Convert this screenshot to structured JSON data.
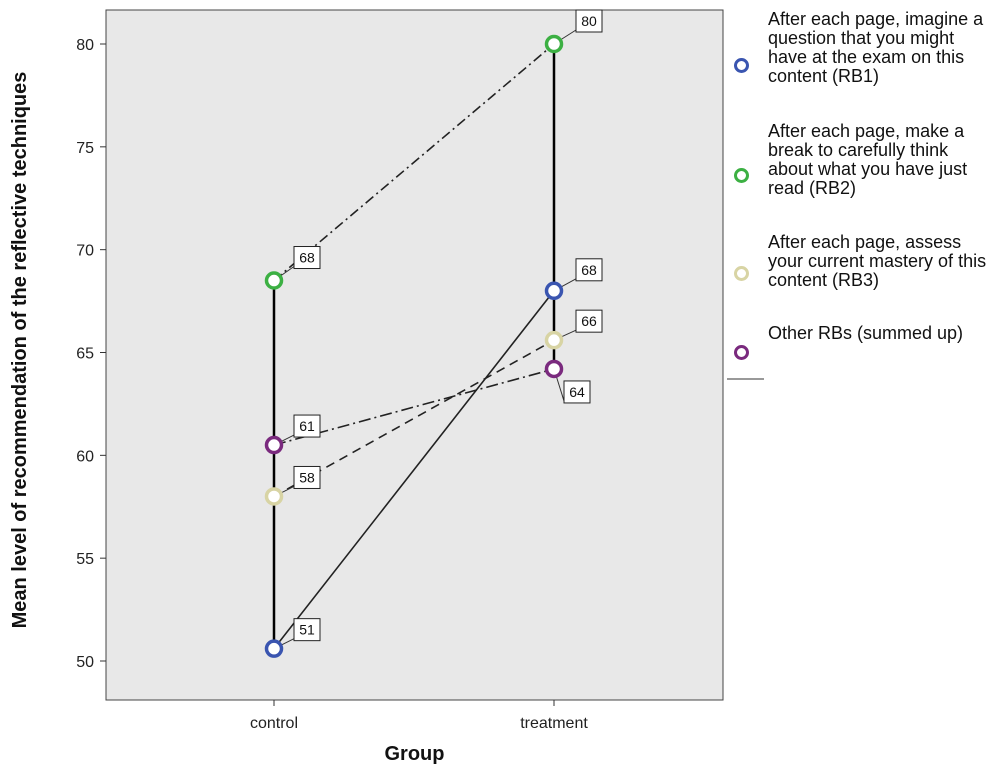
{
  "chart_data": {
    "type": "line",
    "categories": [
      "control",
      "treatment"
    ],
    "xlabel": "Group",
    "ylabel": "Mean level of recommendation of the reflective techniques",
    "ylim": [
      49,
      82
    ],
    "yticks": [
      50,
      55,
      60,
      65,
      70,
      75,
      80
    ],
    "grid": false,
    "background": "#e8e8e8",
    "legend_position": "right",
    "series": [
      {
        "name": "After each page, imagine a question that you might have at the exam on this content (RB1)",
        "values": [
          50.6,
          68.0
        ],
        "labels": [
          "51",
          "68"
        ],
        "color": "#3a55b0",
        "dash": ""
      },
      {
        "name": "After each page, make a break to carefully think about what you have just read (RB2)",
        "values": [
          68.5,
          80.0
        ],
        "labels": [
          "68",
          "80"
        ],
        "color": "#3cb043",
        "dash": "10 4 2 4"
      },
      {
        "name": "After each page, assess your current mastery of this content (RB3)",
        "values": [
          58.0,
          65.6
        ],
        "labels": [
          "58",
          "66"
        ],
        "color": "#d8d4a4",
        "dash": "9 6"
      },
      {
        "name": "Other RBs (summed up)",
        "values": [
          60.5,
          64.2
        ],
        "labels": [
          "61",
          "64"
        ],
        "color": "#7a2a7e",
        "dash": "12 4 2 4"
      }
    ]
  }
}
